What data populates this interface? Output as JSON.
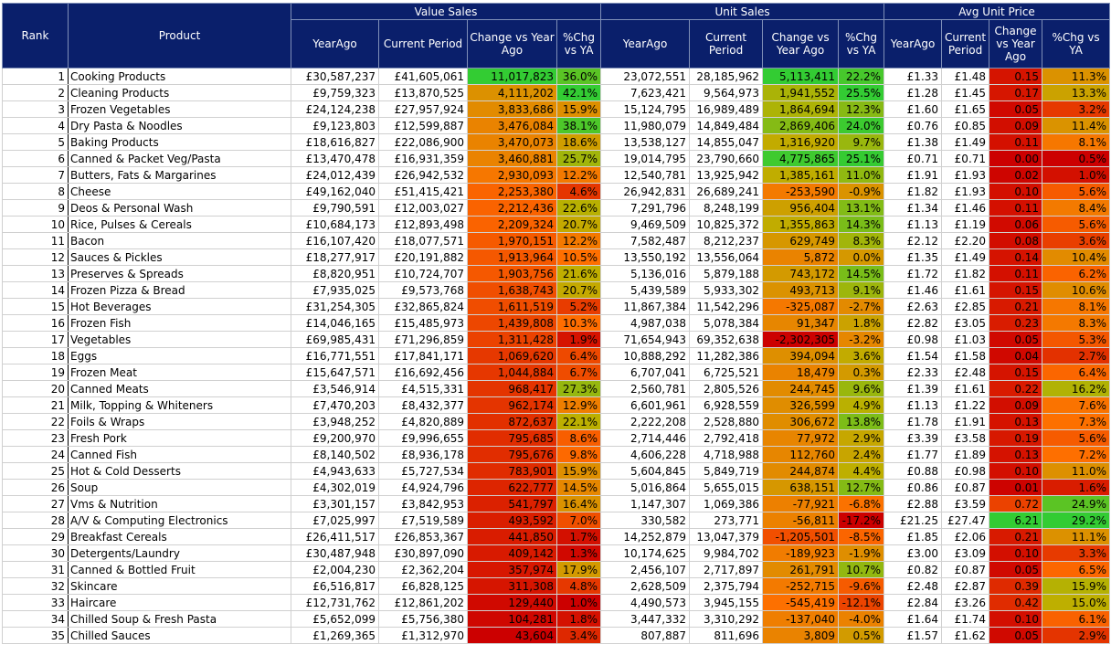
{
  "header": {
    "rank": "Rank",
    "product": "Product",
    "groups": [
      "Value Sales",
      "Unit Sales",
      "Avg Unit Price"
    ],
    "value_cols": [
      "YearAgo",
      "Current Period",
      "Change vs Year Ago",
      "%Chg vs YA"
    ],
    "unit_cols": [
      "YearAgo",
      "Current Period",
      "Change vs Year Ago",
      "%Chg vs YA"
    ],
    "price_cols": [
      "YearAgo",
      "Current Period",
      "Change vs Year Ago",
      "%Chg vs YA"
    ]
  },
  "colors": {
    "header_bg": "#0a1f6b",
    "header_text": "#ffffff",
    "high": "#33cc33",
    "mid": "#b5b000",
    "low": "#ff6a00",
    "lowest": "#cc0000"
  },
  "rows": [
    {
      "rank": "1",
      "product": "Cooking Products",
      "v_ya": "£30,587,237",
      "v_cp": "£41,605,061",
      "v_chg": "11,017,823",
      "v_pct": "36.0%",
      "u_ya": "23,072,551",
      "u_cp": "28,185,962",
      "u_chg": "5,113,411",
      "u_pct": "22.2%",
      "p_ya": "£1.33",
      "p_cp": "£1.48",
      "p_chg": "0.15",
      "p_pct": "11.3%"
    },
    {
      "rank": "2",
      "product": "Cleaning Products",
      "v_ya": "£9,759,323",
      "v_cp": "£13,870,525",
      "v_chg": "4,111,202",
      "v_pct": "42.1%",
      "u_ya": "7,623,421",
      "u_cp": "9,564,973",
      "u_chg": "1,941,552",
      "u_pct": "25.5%",
      "p_ya": "£1.28",
      "p_cp": "£1.45",
      "p_chg": "0.17",
      "p_pct": "13.3%"
    },
    {
      "rank": "3",
      "product": "Frozen Vegetables",
      "v_ya": "£24,124,238",
      "v_cp": "£27,957,924",
      "v_chg": "3,833,686",
      "v_pct": "15.9%",
      "u_ya": "15,124,795",
      "u_cp": "16,989,489",
      "u_chg": "1,864,694",
      "u_pct": "12.3%",
      "p_ya": "£1.60",
      "p_cp": "£1.65",
      "p_chg": "0.05",
      "p_pct": "3.2%"
    },
    {
      "rank": "4",
      "product": "Dry Pasta & Noodles",
      "v_ya": "£9,123,803",
      "v_cp": "£12,599,887",
      "v_chg": "3,476,084",
      "v_pct": "38.1%",
      "u_ya": "11,980,079",
      "u_cp": "14,849,484",
      "u_chg": "2,869,406",
      "u_pct": "24.0%",
      "p_ya": "£0.76",
      "p_cp": "£0.85",
      "p_chg": "0.09",
      "p_pct": "11.4%"
    },
    {
      "rank": "5",
      "product": "Baking Products",
      "v_ya": "£18,616,827",
      "v_cp": "£22,086,900",
      "v_chg": "3,470,073",
      "v_pct": "18.6%",
      "u_ya": "13,538,127",
      "u_cp": "14,855,047",
      "u_chg": "1,316,920",
      "u_pct": "9.7%",
      "p_ya": "£1.38",
      "p_cp": "£1.49",
      "p_chg": "0.11",
      "p_pct": "8.1%"
    },
    {
      "rank": "6",
      "product": "Canned & Packet Veg/Pasta",
      "v_ya": "£13,470,478",
      "v_cp": "£16,931,359",
      "v_chg": "3,460,881",
      "v_pct": "25.7%",
      "u_ya": "19,014,795",
      "u_cp": "23,790,660",
      "u_chg": "4,775,865",
      "u_pct": "25.1%",
      "p_ya": "£0.71",
      "p_cp": "£0.71",
      "p_chg": "0.00",
      "p_pct": "0.5%"
    },
    {
      "rank": "7",
      "product": "Butters, Fats & Margarines",
      "v_ya": "£24,012,439",
      "v_cp": "£26,942,532",
      "v_chg": "2,930,093",
      "v_pct": "12.2%",
      "u_ya": "12,540,781",
      "u_cp": "13,925,942",
      "u_chg": "1,385,161",
      "u_pct": "11.0%",
      "p_ya": "£1.91",
      "p_cp": "£1.93",
      "p_chg": "0.02",
      "p_pct": "1.0%"
    },
    {
      "rank": "8",
      "product": "Cheese",
      "v_ya": "£49,162,040",
      "v_cp": "£51,415,421",
      "v_chg": "2,253,380",
      "v_pct": "4.6%",
      "u_ya": "26,942,831",
      "u_cp": "26,689,241",
      "u_chg": "-253,590",
      "u_pct": "-0.9%",
      "p_ya": "£1.82",
      "p_cp": "£1.93",
      "p_chg": "0.10",
      "p_pct": "5.6%"
    },
    {
      "rank": "9",
      "product": "Deos & Personal Wash",
      "v_ya": "£9,790,591",
      "v_cp": "£12,003,027",
      "v_chg": "2,212,436",
      "v_pct": "22.6%",
      "u_ya": "7,291,796",
      "u_cp": "8,248,199",
      "u_chg": "956,404",
      "u_pct": "13.1%",
      "p_ya": "£1.34",
      "p_cp": "£1.46",
      "p_chg": "0.11",
      "p_pct": "8.4%"
    },
    {
      "rank": "10",
      "product": "Rice, Pulses & Cereals",
      "v_ya": "£10,684,173",
      "v_cp": "£12,893,498",
      "v_chg": "2,209,324",
      "v_pct": "20.7%",
      "u_ya": "9,469,509",
      "u_cp": "10,825,372",
      "u_chg": "1,355,863",
      "u_pct": "14.3%",
      "p_ya": "£1.13",
      "p_cp": "£1.19",
      "p_chg": "0.06",
      "p_pct": "5.6%"
    },
    {
      "rank": "11",
      "product": "Bacon",
      "v_ya": "£16,107,420",
      "v_cp": "£18,077,571",
      "v_chg": "1,970,151",
      "v_pct": "12.2%",
      "u_ya": "7,582,487",
      "u_cp": "8,212,237",
      "u_chg": "629,749",
      "u_pct": "8.3%",
      "p_ya": "£2.12",
      "p_cp": "£2.20",
      "p_chg": "0.08",
      "p_pct": "3.6%"
    },
    {
      "rank": "12",
      "product": "Sauces & Pickles",
      "v_ya": "£18,277,917",
      "v_cp": "£20,191,882",
      "v_chg": "1,913,964",
      "v_pct": "10.5%",
      "u_ya": "13,550,192",
      "u_cp": "13,556,064",
      "u_chg": "5,872",
      "u_pct": "0.0%",
      "p_ya": "£1.35",
      "p_cp": "£1.49",
      "p_chg": "0.14",
      "p_pct": "10.4%"
    },
    {
      "rank": "13",
      "product": "Preserves & Spreads",
      "v_ya": "£8,820,951",
      "v_cp": "£10,724,707",
      "v_chg": "1,903,756",
      "v_pct": "21.6%",
      "u_ya": "5,136,016",
      "u_cp": "5,879,188",
      "u_chg": "743,172",
      "u_pct": "14.5%",
      "p_ya": "£1.72",
      "p_cp": "£1.82",
      "p_chg": "0.11",
      "p_pct": "6.2%"
    },
    {
      "rank": "14",
      "product": "Frozen Pizza & Bread",
      "v_ya": "£7,935,025",
      "v_cp": "£9,573,768",
      "v_chg": "1,638,743",
      "v_pct": "20.7%",
      "u_ya": "5,439,589",
      "u_cp": "5,933,302",
      "u_chg": "493,713",
      "u_pct": "9.1%",
      "p_ya": "£1.46",
      "p_cp": "£1.61",
      "p_chg": "0.15",
      "p_pct": "10.6%"
    },
    {
      "rank": "15",
      "product": "Hot Beverages",
      "v_ya": "£31,254,305",
      "v_cp": "£32,865,824",
      "v_chg": "1,611,519",
      "v_pct": "5.2%",
      "u_ya": "11,867,384",
      "u_cp": "11,542,296",
      "u_chg": "-325,087",
      "u_pct": "-2.7%",
      "p_ya": "£2.63",
      "p_cp": "£2.85",
      "p_chg": "0.21",
      "p_pct": "8.1%"
    },
    {
      "rank": "16",
      "product": "Frozen Fish",
      "v_ya": "£14,046,165",
      "v_cp": "£15,485,973",
      "v_chg": "1,439,808",
      "v_pct": "10.3%",
      "u_ya": "4,987,038",
      "u_cp": "5,078,384",
      "u_chg": "91,347",
      "u_pct": "1.8%",
      "p_ya": "£2.82",
      "p_cp": "£3.05",
      "p_chg": "0.23",
      "p_pct": "8.3%"
    },
    {
      "rank": "17",
      "product": "Vegetables",
      "v_ya": "£69,985,431",
      "v_cp": "£71,296,859",
      "v_chg": "1,311,428",
      "v_pct": "1.9%",
      "u_ya": "71,654,943",
      "u_cp": "69,352,638",
      "u_chg": "-2,302,305",
      "u_pct": "-3.2%",
      "p_ya": "£0.98",
      "p_cp": "£1.03",
      "p_chg": "0.05",
      "p_pct": "5.3%"
    },
    {
      "rank": "18",
      "product": "Eggs",
      "v_ya": "£16,771,551",
      "v_cp": "£17,841,171",
      "v_chg": "1,069,620",
      "v_pct": "6.4%",
      "u_ya": "10,888,292",
      "u_cp": "11,282,386",
      "u_chg": "394,094",
      "u_pct": "3.6%",
      "p_ya": "£1.54",
      "p_cp": "£1.58",
      "p_chg": "0.04",
      "p_pct": "2.7%"
    },
    {
      "rank": "19",
      "product": "Frozen Meat",
      "v_ya": "£15,647,571",
      "v_cp": "£16,692,456",
      "v_chg": "1,044,884",
      "v_pct": "6.7%",
      "u_ya": "6,707,041",
      "u_cp": "6,725,521",
      "u_chg": "18,479",
      "u_pct": "0.3%",
      "p_ya": "£2.33",
      "p_cp": "£2.48",
      "p_chg": "0.15",
      "p_pct": "6.4%"
    },
    {
      "rank": "20",
      "product": "Canned Meats",
      "v_ya": "£3,546,914",
      "v_cp": "£4,515,331",
      "v_chg": "968,417",
      "v_pct": "27.3%",
      "u_ya": "2,560,781",
      "u_cp": "2,805,526",
      "u_chg": "244,745",
      "u_pct": "9.6%",
      "p_ya": "£1.39",
      "p_cp": "£1.61",
      "p_chg": "0.22",
      "p_pct": "16.2%"
    },
    {
      "rank": "21",
      "product": "Milk, Topping & Whiteners",
      "v_ya": "£7,470,203",
      "v_cp": "£8,432,377",
      "v_chg": "962,174",
      "v_pct": "12.9%",
      "u_ya": "6,601,961",
      "u_cp": "6,928,559",
      "u_chg": "326,599",
      "u_pct": "4.9%",
      "p_ya": "£1.13",
      "p_cp": "£1.22",
      "p_chg": "0.09",
      "p_pct": "7.6%"
    },
    {
      "rank": "22",
      "product": "Foils & Wraps",
      "v_ya": "£3,948,252",
      "v_cp": "£4,820,889",
      "v_chg": "872,637",
      "v_pct": "22.1%",
      "u_ya": "2,222,208",
      "u_cp": "2,528,880",
      "u_chg": "306,672",
      "u_pct": "13.8%",
      "p_ya": "£1.78",
      "p_cp": "£1.91",
      "p_chg": "0.13",
      "p_pct": "7.3%"
    },
    {
      "rank": "23",
      "product": "Fresh Pork",
      "v_ya": "£9,200,970",
      "v_cp": "£9,996,655",
      "v_chg": "795,685",
      "v_pct": "8.6%",
      "u_ya": "2,714,446",
      "u_cp": "2,792,418",
      "u_chg": "77,972",
      "u_pct": "2.9%",
      "p_ya": "£3.39",
      "p_cp": "£3.58",
      "p_chg": "0.19",
      "p_pct": "5.6%"
    },
    {
      "rank": "24",
      "product": "Canned Fish",
      "v_ya": "£8,140,502",
      "v_cp": "£8,936,178",
      "v_chg": "795,676",
      "v_pct": "9.8%",
      "u_ya": "4,606,228",
      "u_cp": "4,718,988",
      "u_chg": "112,760",
      "u_pct": "2.4%",
      "p_ya": "£1.77",
      "p_cp": "£1.89",
      "p_chg": "0.13",
      "p_pct": "7.2%"
    },
    {
      "rank": "25",
      "product": "Hot & Cold Desserts",
      "v_ya": "£4,943,633",
      "v_cp": "£5,727,534",
      "v_chg": "783,901",
      "v_pct": "15.9%",
      "u_ya": "5,604,845",
      "u_cp": "5,849,719",
      "u_chg": "244,874",
      "u_pct": "4.4%",
      "p_ya": "£0.88",
      "p_cp": "£0.98",
      "p_chg": "0.10",
      "p_pct": "11.0%"
    },
    {
      "rank": "26",
      "product": "Soup",
      "v_ya": "£4,302,019",
      "v_cp": "£4,924,796",
      "v_chg": "622,777",
      "v_pct": "14.5%",
      "u_ya": "5,016,864",
      "u_cp": "5,655,015",
      "u_chg": "638,151",
      "u_pct": "12.7%",
      "p_ya": "£0.86",
      "p_cp": "£0.87",
      "p_chg": "0.01",
      "p_pct": "1.6%"
    },
    {
      "rank": "27",
      "product": "Vms & Nutrition",
      "v_ya": "£3,301,157",
      "v_cp": "£3,842,953",
      "v_chg": "541,797",
      "v_pct": "16.4%",
      "u_ya": "1,147,307",
      "u_cp": "1,069,386",
      "u_chg": "-77,921",
      "u_pct": "-6.8%",
      "p_ya": "£2.88",
      "p_cp": "£3.59",
      "p_chg": "0.72",
      "p_pct": "24.9%"
    },
    {
      "rank": "28",
      "product": "A/V & Computing Electronics",
      "v_ya": "£7,025,997",
      "v_cp": "£7,519,589",
      "v_chg": "493,592",
      "v_pct": "7.0%",
      "u_ya": "330,582",
      "u_cp": "273,771",
      "u_chg": "-56,811",
      "u_pct": "-17.2%",
      "p_ya": "£21.25",
      "p_cp": "£27.47",
      "p_chg": "6.21",
      "p_pct": "29.2%"
    },
    {
      "rank": "29",
      "product": "Breakfast Cereals",
      "v_ya": "£26,411,517",
      "v_cp": "£26,853,367",
      "v_chg": "441,850",
      "v_pct": "1.7%",
      "u_ya": "14,252,879",
      "u_cp": "13,047,379",
      "u_chg": "-1,205,501",
      "u_pct": "-8.5%",
      "p_ya": "£1.85",
      "p_cp": "£2.06",
      "p_chg": "0.21",
      "p_pct": "11.1%"
    },
    {
      "rank": "30",
      "product": "Detergents/Laundry",
      "v_ya": "£30,487,948",
      "v_cp": "£30,897,090",
      "v_chg": "409,142",
      "v_pct": "1.3%",
      "u_ya": "10,174,625",
      "u_cp": "9,984,702",
      "u_chg": "-189,923",
      "u_pct": "-1.9%",
      "p_ya": "£3.00",
      "p_cp": "£3.09",
      "p_chg": "0.10",
      "p_pct": "3.3%"
    },
    {
      "rank": "31",
      "product": "Canned & Bottled Fruit",
      "v_ya": "£2,004,230",
      "v_cp": "£2,362,204",
      "v_chg": "357,974",
      "v_pct": "17.9%",
      "u_ya": "2,456,107",
      "u_cp": "2,717,897",
      "u_chg": "261,791",
      "u_pct": "10.7%",
      "p_ya": "£0.82",
      "p_cp": "£0.87",
      "p_chg": "0.05",
      "p_pct": "6.5%"
    },
    {
      "rank": "32",
      "product": "Skincare",
      "v_ya": "£6,516,817",
      "v_cp": "£6,828,125",
      "v_chg": "311,308",
      "v_pct": "4.8%",
      "u_ya": "2,628,509",
      "u_cp": "2,375,794",
      "u_chg": "-252,715",
      "u_pct": "-9.6%",
      "p_ya": "£2.48",
      "p_cp": "£2.87",
      "p_chg": "0.39",
      "p_pct": "15.9%"
    },
    {
      "rank": "33",
      "product": "Haircare",
      "v_ya": "£12,731,762",
      "v_cp": "£12,861,202",
      "v_chg": "129,440",
      "v_pct": "1.0%",
      "u_ya": "4,490,573",
      "u_cp": "3,945,155",
      "u_chg": "-545,419",
      "u_pct": "-12.1%",
      "p_ya": "£2.84",
      "p_cp": "£3.26",
      "p_chg": "0.42",
      "p_pct": "15.0%"
    },
    {
      "rank": "34",
      "product": "Chilled Soup & Fresh Pasta",
      "v_ya": "£5,652,099",
      "v_cp": "£5,756,380",
      "v_chg": "104,281",
      "v_pct": "1.8%",
      "u_ya": "3,447,332",
      "u_cp": "3,310,292",
      "u_chg": "-137,040",
      "u_pct": "-4.0%",
      "p_ya": "£1.64",
      "p_cp": "£1.74",
      "p_chg": "0.10",
      "p_pct": "6.1%"
    },
    {
      "rank": "35",
      "product": "Chilled Sauces",
      "v_ya": "£1,269,365",
      "v_cp": "£1,312,970",
      "v_chg": "43,604",
      "v_pct": "3.4%",
      "u_ya": "807,887",
      "u_cp": "811,696",
      "u_chg": "3,809",
      "u_pct": "0.5%",
      "p_ya": "£1.57",
      "p_cp": "£1.62",
      "p_chg": "0.05",
      "p_pct": "2.9%"
    }
  ]
}
